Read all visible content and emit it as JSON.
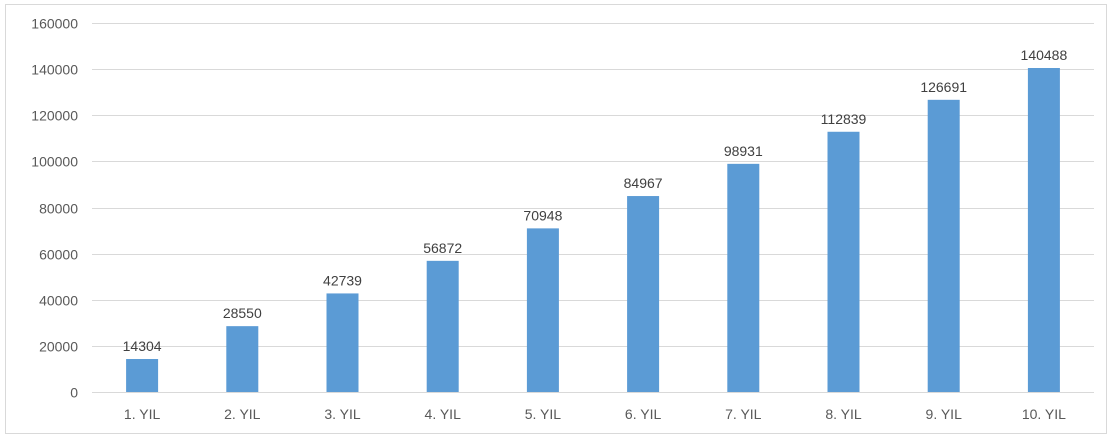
{
  "chart_data": {
    "type": "bar",
    "categories": [
      "1. YIL",
      "2. YIL",
      "3. YIL",
      "4. YIL",
      "5. YIL",
      "6. YIL",
      "7. YIL",
      "8. YIL",
      "9. YIL",
      "10. YIL"
    ],
    "values": [
      14304,
      28550,
      42739,
      56872,
      70948,
      84967,
      98931,
      112839,
      126691,
      140488
    ],
    "ylim": [
      0,
      160000
    ],
    "yticks": [
      0,
      20000,
      40000,
      60000,
      80000,
      100000,
      120000,
      140000,
      160000
    ],
    "grid": true,
    "data_labels": true,
    "legend": "none",
    "colors": {
      "bar": "#5b9bd5",
      "grid": "#d9d9d9",
      "text": "#595959"
    }
  }
}
